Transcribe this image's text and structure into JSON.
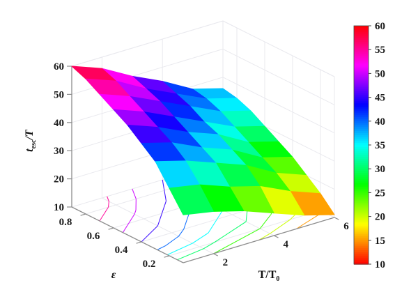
{
  "figure": {
    "background": "#ffffff",
    "axis_color": "#8c8c8c",
    "grid_color": "#e9e9ee",
    "text_color": "#1a1a1a",
    "zlabel": {
      "pre": "t",
      "sub": "esc",
      "post": "/T"
    },
    "xlabel": {
      "pre": "T/T",
      "sub": "0"
    },
    "ylabel": "ε"
  },
  "chart_data": {
    "type": "surface3d",
    "title": "",
    "xlabel": "T/T0",
    "ylabel": "epsilon",
    "zlabel": "t_esc/T",
    "x": [
      1,
      2,
      3,
      4,
      5,
      6
    ],
    "y": [
      0.1,
      0.2,
      0.3,
      0.4,
      0.5,
      0.6,
      0.7,
      0.8,
      0.9
    ],
    "z": [
      [
        27,
        25,
        22,
        18,
        14,
        11
      ],
      [
        34,
        32,
        28,
        25,
        20,
        16
      ],
      [
        41,
        38,
        34,
        30,
        24,
        20
      ],
      [
        45,
        42,
        37,
        33,
        27,
        24
      ],
      [
        49,
        45,
        40,
        36,
        30,
        27
      ],
      [
        52,
        48,
        43,
        38,
        33,
        30
      ],
      [
        55,
        51,
        46,
        41,
        36,
        33
      ],
      [
        58,
        54,
        48,
        43,
        38,
        35
      ],
      [
        60,
        56,
        50,
        45,
        39,
        36
      ]
    ],
    "zlim": [
      10,
      60
    ],
    "x_ticks": [
      2,
      4,
      6
    ],
    "y_ticks": [
      0.8,
      0.6,
      0.4,
      0.2
    ],
    "z_ticks": [
      60,
      50,
      40,
      30,
      20,
      10
    ],
    "colormap": "hsv",
    "grid": true,
    "legend_position": "none",
    "colorbar": {
      "min": 10,
      "max": 60,
      "ticks": [
        60,
        55,
        50,
        45,
        40,
        35,
        30,
        25,
        20,
        15,
        10
      ]
    },
    "contour_levels": [
      15,
      20,
      25,
      30,
      35,
      40,
      45,
      50,
      55
    ]
  }
}
